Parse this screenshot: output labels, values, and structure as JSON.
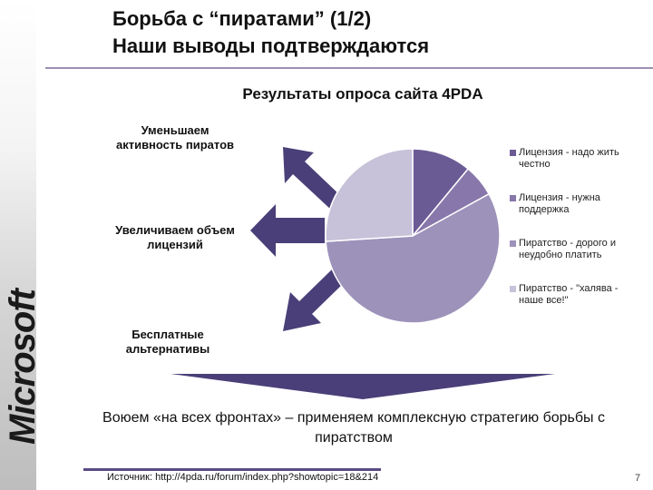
{
  "brand": {
    "logo_text": "Microsoft"
  },
  "title": {
    "line1": "Борьба с “пиратами” (1/2)",
    "line2": "Наши выводы подтверждаются"
  },
  "arrows": {
    "top_label": "Уменьшаем активность пиратов",
    "middle_label": "Увеличиваем объем лицензий",
    "bottom_label": "Бесплатные альтернативы"
  },
  "chart_data": {
    "type": "pie",
    "title": "Результаты опроса сайта 4PDA",
    "legend_position": "right",
    "slices": [
      {
        "label": "Лицензия - надо жить честно",
        "value": 11,
        "color": "#6b5b95"
      },
      {
        "label": "Лицензия - нужна поддержка",
        "value": 6,
        "color": "#8877aa"
      },
      {
        "label": "Пиратство - дорого и неудобно платить",
        "value": 57,
        "color": "#9d92ba"
      },
      {
        "label": "Пиратство - \"халява - наше все!\"",
        "value": 26,
        "color": "#c7c2d9"
      }
    ]
  },
  "conclusion": "Воюем «на всех фронтах» – применяем комплексную стратегию борьбы с пиратством",
  "footer": {
    "source": "Источник: http://4pda.ru/forum/index.php?showtopic=18&214",
    "page": "7"
  },
  "colors": {
    "arrow": "#4a3f78",
    "accent_rule": "#5a4a84"
  }
}
